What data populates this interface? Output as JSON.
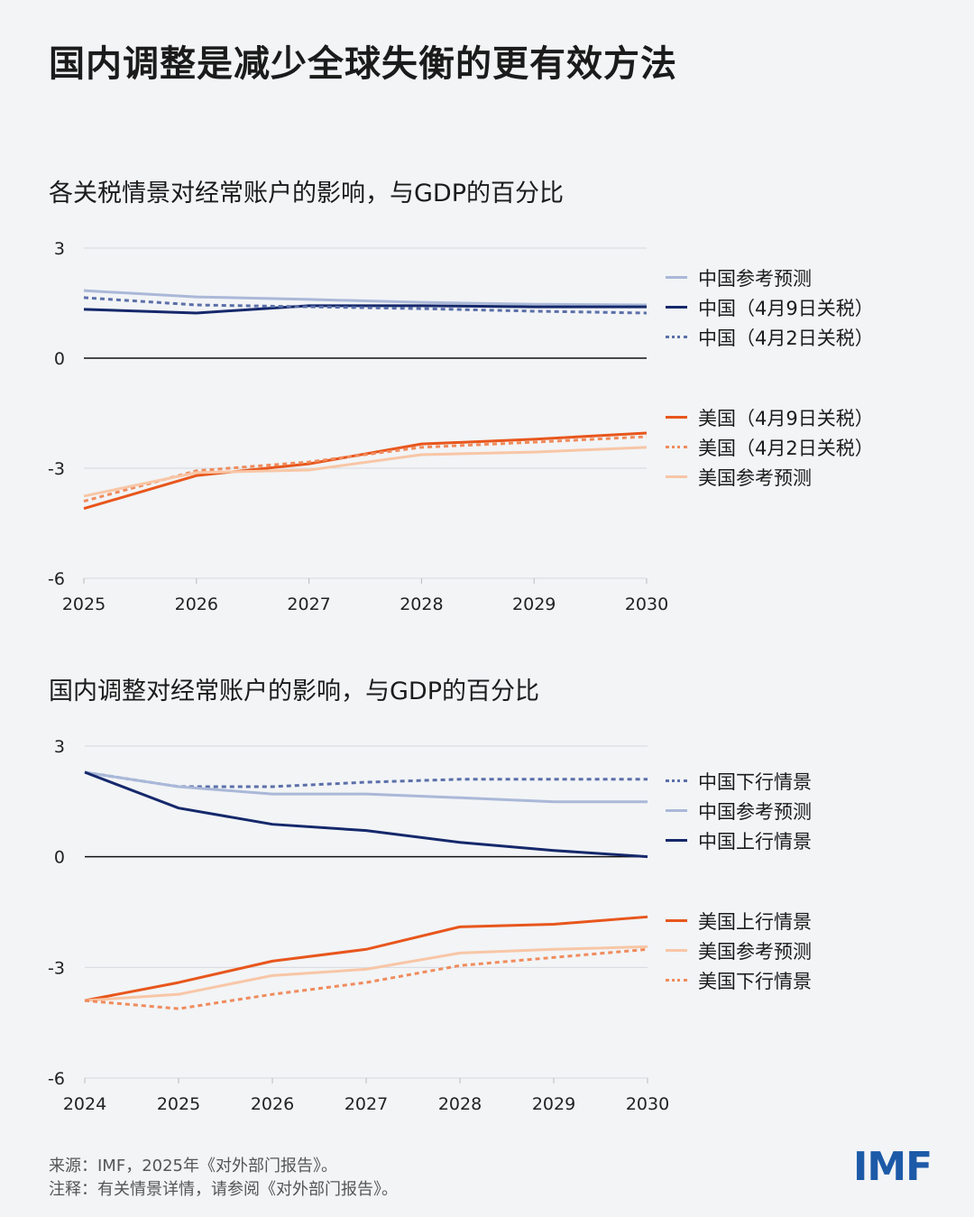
{
  "title": "国内调整是减少全球失衡的更有效方法",
  "footer": {
    "source": "来源：IMF，2025年《对外部门报告》。",
    "note": "注释：有关情景详情，请参阅《对外部门报告》。",
    "logo": "IMF"
  },
  "colors": {
    "background": "#f2f4f6",
    "china_dark": "#15286b",
    "china_light": "#aab8d8",
    "china_dotted": "#5b6fa9",
    "us_dark": "#e8561c",
    "us_light": "#f8c6a6",
    "us_dotted": "#f08b5c"
  },
  "chart_data": [
    {
      "type": "line",
      "title": "各关税情景对经常账户的影响，与GDP的百分比",
      "x": [
        2025,
        2026,
        2027,
        2028,
        2029,
        2030
      ],
      "x_ticks": [
        "2025",
        "2026",
        "2027",
        "2028",
        "2029",
        "2030"
      ],
      "ylim": [
        -6,
        3
      ],
      "y_ticks": [
        "3",
        "0",
        "-3",
        "-6"
      ],
      "grid": true,
      "legend_placement": "right",
      "series": [
        {
          "name": "中国参考预测",
          "color": "#aab8d8",
          "style": "solid",
          "values": [
            1.84,
            1.67,
            1.6,
            1.52,
            1.47,
            1.45
          ]
        },
        {
          "name": "中国（4月9日关税）",
          "color": "#15286b",
          "style": "solid",
          "values": [
            1.33,
            1.23,
            1.43,
            1.43,
            1.4,
            1.4
          ]
        },
        {
          "name": "中国（4月2日关税）",
          "color": "#5b6fa9",
          "style": "dotted",
          "values": [
            1.65,
            1.45,
            1.4,
            1.35,
            1.28,
            1.23
          ]
        },
        {
          "name": "美国（4月9日关税）",
          "color": "#e8561c",
          "style": "solid",
          "values": [
            -4.1,
            -3.2,
            -2.88,
            -2.34,
            -2.21,
            -2.04
          ]
        },
        {
          "name": "美国（4月2日关税）",
          "color": "#f08b5c",
          "style": "dotted",
          "values": [
            -3.9,
            -3.07,
            -2.83,
            -2.43,
            -2.29,
            -2.14
          ]
        },
        {
          "name": "美国参考预测",
          "color": "#f8c6a6",
          "style": "solid",
          "values": [
            -3.76,
            -3.12,
            -3.05,
            -2.63,
            -2.56,
            -2.43
          ]
        }
      ]
    },
    {
      "type": "line",
      "title": "国内调整对经常账户的影响，与GDP的百分比",
      "x": [
        2024,
        2025,
        2026,
        2027,
        2028,
        2029,
        2030
      ],
      "x_ticks": [
        "2024",
        "2025",
        "2026",
        "2027",
        "2028",
        "2029",
        "2030"
      ],
      "ylim": [
        -6,
        3
      ],
      "y_ticks": [
        "3",
        "0",
        "-3",
        "-6"
      ],
      "grid": true,
      "legend_placement": "right",
      "series": [
        {
          "name": "中国下行情景",
          "color": "#5b6fa9",
          "style": "dotted",
          "values": [
            2.29,
            1.9,
            1.9,
            2.02,
            2.1,
            2.1,
            2.1
          ]
        },
        {
          "name": "中国参考预测",
          "color": "#aab8d8",
          "style": "solid",
          "values": [
            2.29,
            1.9,
            1.7,
            1.7,
            1.6,
            1.49,
            1.49
          ]
        },
        {
          "name": "中国上行情景",
          "color": "#15286b",
          "style": "solid",
          "values": [
            2.29,
            1.32,
            0.88,
            0.71,
            0.39,
            0.17,
            0.0
          ]
        },
        {
          "name": "美国上行情景",
          "color": "#e8561c",
          "style": "solid",
          "values": [
            -3.9,
            -3.41,
            -2.83,
            -2.51,
            -1.9,
            -1.83,
            -1.63
          ]
        },
        {
          "name": "美国参考预测",
          "color": "#f8c6a6",
          "style": "solid",
          "values": [
            -3.9,
            -3.73,
            -3.22,
            -3.05,
            -2.61,
            -2.51,
            -2.44
          ]
        },
        {
          "name": "美国下行情景",
          "color": "#f08b5c",
          "style": "dotted",
          "values": [
            -3.9,
            -4.12,
            -3.73,
            -3.41,
            -2.95,
            -2.73,
            -2.51
          ]
        }
      ]
    }
  ]
}
